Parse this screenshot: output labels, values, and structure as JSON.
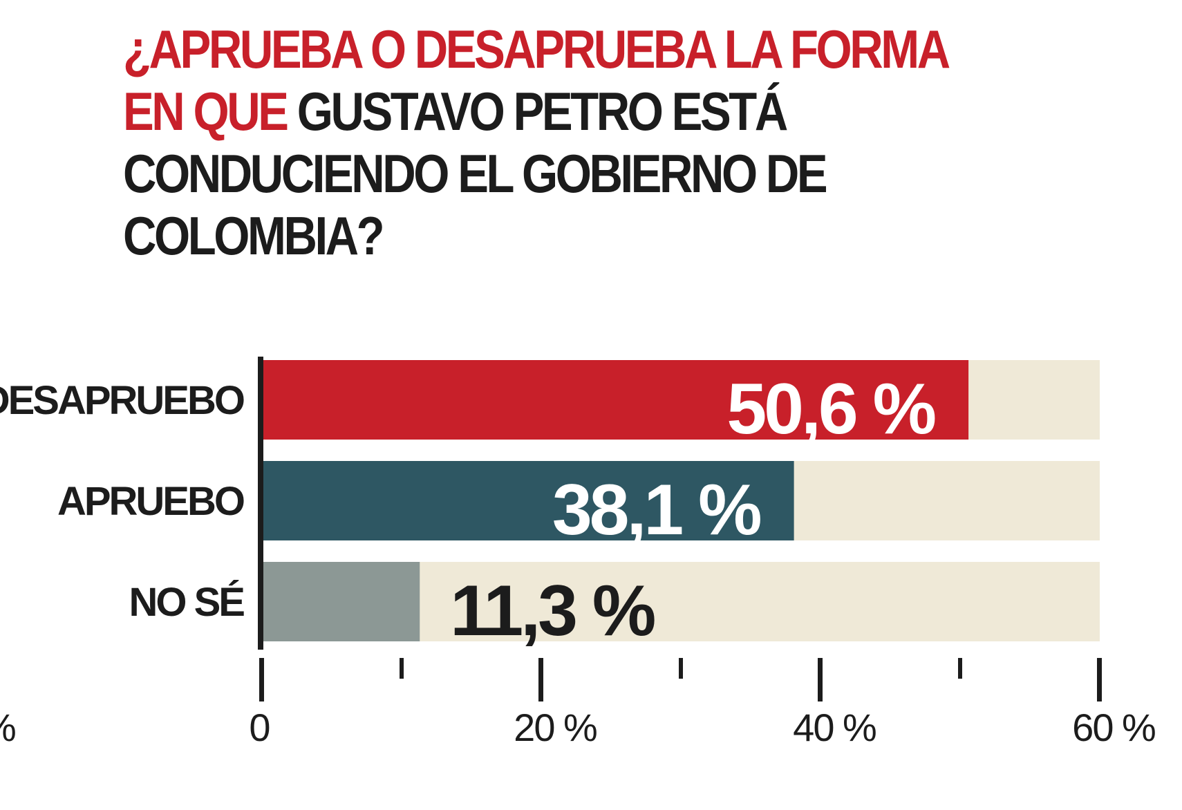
{
  "title": {
    "part1": "¿APRUEBA O DESAPRUEBA LA FORMA EN QUE",
    "part2": " GUSTAVO PETRO ESTÁ CONDUCIENDO EL GOBIERNO DE COLOMBIA?"
  },
  "colors": {
    "red": "#c8202a",
    "teal": "#2e5763",
    "gray": "#8c9895",
    "track": "#efe9d7",
    "dark": "#1c1c1c"
  },
  "chart_data": {
    "type": "bar",
    "orientation": "horizontal",
    "categories": [
      "DESAPRUEBO",
      "APRUEBO",
      "NO SÉ"
    ],
    "values": [
      50.6,
      38.1,
      11.3
    ],
    "value_labels": [
      "50,6 %",
      "38,1 %",
      "11,3 %"
    ],
    "bar_colors": [
      "#c8202a",
      "#2e5763",
      "#8c9895"
    ],
    "value_label_colors": [
      "#ffffff",
      "#ffffff",
      "#1c1c1c"
    ],
    "xlim": [
      0,
      60
    ],
    "major_ticks": [
      0,
      20,
      40,
      60
    ],
    "minor_ticks": [
      10,
      30,
      50
    ],
    "tick_labels": [
      "0",
      "20 %",
      "40 %",
      "60 %"
    ],
    "edge_fragment": "%"
  }
}
